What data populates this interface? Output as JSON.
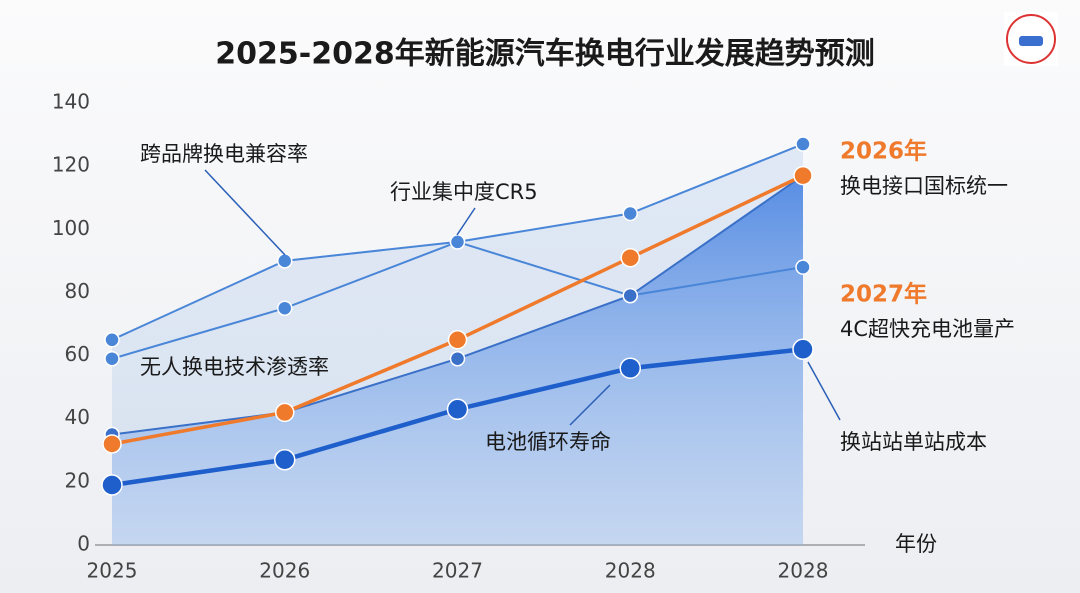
{
  "chart_data": {
    "type": "line",
    "title": "2025-2028年新能源汽车换电行业发展趋势预测",
    "x_label": "年份",
    "categories": [
      "2025",
      "2026",
      "2027",
      "2028",
      "2028"
    ],
    "ylim": [
      0,
      140
    ],
    "yticks": [
      0,
      20,
      40,
      60,
      80,
      100,
      120,
      140
    ],
    "grid": false,
    "series": [
      {
        "name": "跨品牌换电兼容率",
        "color": "#4a86d8",
        "values": [
          65,
          90,
          96,
          105,
          127
        ]
      },
      {
        "name": "行业集中度CR5",
        "color": "#4a86d8",
        "values": [
          59,
          75,
          96,
          79,
          88
        ]
      },
      {
        "name": "无人换电技术渗透率",
        "color": "#3a70c8",
        "values": [
          35,
          42,
          59,
          79,
          117
        ]
      },
      {
        "color": "#ef7a2c",
        "values": [
          32,
          42,
          65,
          91,
          117
        ]
      },
      {
        "name": "电池循环寿命",
        "color": "#1f5fcc",
        "values": [
          19,
          27,
          43,
          56,
          62
        ]
      }
    ],
    "annotations": [
      "2026年",
      "换电接口国标统一",
      "2027年",
      "4C超快充电池量产",
      "换站站单站成本"
    ]
  }
}
